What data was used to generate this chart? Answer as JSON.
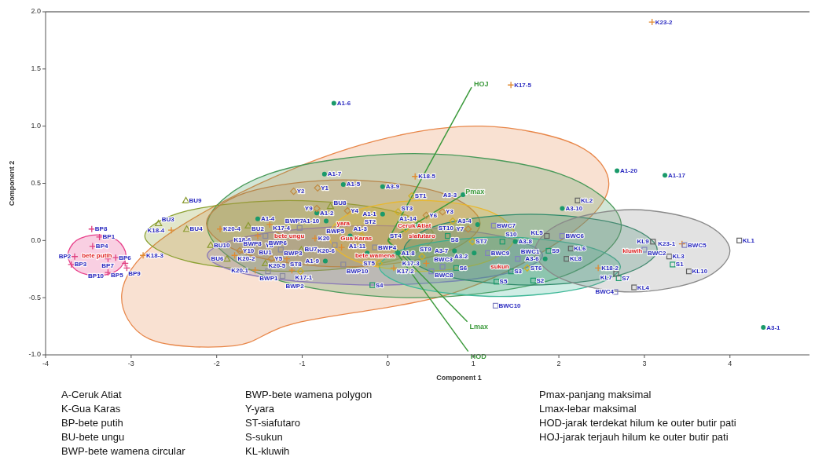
{
  "chart_data": {
    "type": "scatter",
    "xlabel": "Component 1",
    "ylabel": "Component 2",
    "xlim": [
      -4,
      4.93
    ],
    "ylim": [
      -1,
      2
    ],
    "xticks": [
      -4,
      -3,
      -2,
      -1,
      0,
      1,
      2,
      3,
      4
    ],
    "yticks": [
      {
        "value": -1,
        "label": "-1.0"
      },
      -0.5,
      {
        "value": 0,
        "label": "0.0"
      },
      0.5,
      {
        "value": 1,
        "label": "1.0"
      },
      1.5,
      {
        "value": 2,
        "label": "2.0"
      }
    ],
    "series": [
      {
        "type": "area",
        "name": "Gua Karas",
        "color": "#e8874a",
        "x": [
          2.58,
          2.22,
          1.1,
          -0.15,
          -1.52,
          -2.7,
          -3.11,
          -2.79,
          -1.79,
          -1.06,
          0.76,
          2.04
        ],
        "values": [
          0.46,
          0.83,
          1.0,
          0.87,
          0.49,
          -0.02,
          -0.47,
          -0.86,
          -0.92,
          -0.72,
          -0.46,
          0.01
        ]
      },
      {
        "type": "area",
        "name": "Ceruk Atiat",
        "color": "#4a9a5a",
        "x": [
          2.73,
          2.02,
          0.31,
          -1.4,
          -2.11,
          -1.4,
          0.31,
          2.02
        ],
        "values": [
          0.13,
          0.58,
          0.76,
          0.58,
          0.13,
          -0.32,
          -0.5,
          -0.32
        ]
      },
      {
        "type": "area",
        "name": "bete ungu",
        "color": "#8aa030",
        "x": [
          0.54,
          0.04,
          -1.15,
          -2.34,
          -2.84,
          -2.34,
          -1.15,
          0.04
        ],
        "values": [
          0.04,
          0.26,
          0.35,
          0.26,
          0.04,
          -0.18,
          -0.27,
          -0.18
        ]
      },
      {
        "type": "area",
        "name": "bete wamena",
        "color": "#8a78b8",
        "x": [
          1.81,
          1.24,
          -0.15,
          -1.54,
          -2.11,
          -1.54,
          -0.15,
          1.24
        ],
        "values": [
          -0.13,
          0.05,
          0.13,
          0.05,
          -0.13,
          -0.31,
          -0.39,
          -0.31
        ]
      },
      {
        "type": "area",
        "name": "yara",
        "color": "#b8864a",
        "x": [
          1.08,
          0.61,
          -0.52,
          -1.65,
          -2.12,
          -1.65,
          -0.52,
          0.61
        ],
        "values": [
          0.15,
          0.42,
          0.53,
          0.42,
          0.15,
          -0.12,
          -0.23,
          -0.12
        ]
      },
      {
        "type": "area",
        "name": "siafutaro",
        "color": "#e8b830",
        "x": [
          1.49,
          1.17,
          0.4,
          -0.37,
          -0.69,
          -0.37,
          0.4,
          1.17
        ],
        "values": [
          0.04,
          0.26,
          0.35,
          0.26,
          0.04,
          -0.18,
          -0.27,
          -0.18
        ]
      },
      {
        "type": "area",
        "name": "sukun",
        "color": "#3fb898",
        "x": [
          2.72,
          2.31,
          1.31,
          0.31,
          -0.1,
          0.31,
          1.31,
          2.31
        ],
        "values": [
          -0.23,
          -0.05,
          0.03,
          -0.05,
          -0.23,
          -0.41,
          -0.49,
          -0.41
        ]
      },
      {
        "type": "area",
        "color": "#2e8a6a",
        "x": [
          3.15,
          2.72,
          1.67,
          0.62,
          0.19,
          0.62,
          1.67,
          2.72
        ],
        "values": [
          -0.08,
          0.14,
          0.23,
          0.14,
          -0.08,
          -0.3,
          -0.39,
          -0.3
        ]
      },
      {
        "type": "area",
        "name": "kluwih",
        "color": "#8a8a8a",
        "x": [
          4.0,
          3.67,
          2.86,
          2.05,
          1.72,
          2.05,
          2.86,
          3.67
        ],
        "values": [
          -0.09,
          0.16,
          0.27,
          0.16,
          -0.09,
          -0.34,
          -0.45,
          -0.34
        ]
      },
      {
        "type": "area",
        "name": "bete putih",
        "color": "#e8408a",
        "x": [
          -3.06,
          -3.16,
          -3.4,
          -3.64,
          -3.74,
          -3.64,
          -3.4,
          -3.16
        ],
        "values": [
          -0.13,
          0.0,
          0.05,
          0.0,
          -0.13,
          -0.26,
          -0.31,
          -0.26
        ]
      },
      {
        "type": "line",
        "name": "HOJ",
        "color": "#3c9a3c",
        "x": [
          0,
          0.98
        ],
        "values": [
          0,
          1.34
        ]
      },
      {
        "type": "line",
        "name": "Pmax",
        "color": "#3c9a3c",
        "x": [
          0,
          0.88
        ],
        "values": [
          0,
          0.4
        ]
      },
      {
        "type": "line",
        "name": "Lmax",
        "color": "#3c9a3c",
        "x": [
          0,
          0.93
        ],
        "values": [
          0,
          -0.71
        ]
      },
      {
        "type": "line",
        "name": "HOD",
        "color": "#3c9a3c",
        "x": [
          0,
          0.94
        ],
        "values": [
          0,
          -0.97
        ]
      },
      {
        "marker": "circle",
        "color": "#1a9a6a",
        "x": [
          -0.63,
          -0.74,
          -0.52,
          -0.06,
          0.88,
          2.68,
          3.24,
          2.04,
          -1.52,
          -0.83,
          -0.06,
          0.35,
          -0.72,
          -0.44,
          -0.73,
          0.12,
          -0.24,
          0.78,
          1.01,
          1.05,
          1.49,
          1.84,
          4.39
        ],
        "values": [
          1.2,
          0.58,
          0.49,
          0.47,
          0.4,
          0.61,
          0.57,
          0.28,
          0.19,
          0.24,
          0.23,
          0.13,
          0.17,
          0.04,
          -0.18,
          -0.11,
          -0.11,
          -0.09,
          -0.11,
          0.14,
          -0.01,
          -0.16,
          -0.76
        ],
        "value_labels": [
          "A1-6",
          "A1-7",
          "A1-5",
          "A3-9",
          "A3-3",
          "A1-20",
          "A1-17",
          "A3-10",
          "A1-4",
          "A1-2",
          "A1-1",
          "A1-14",
          "A1-10",
          "A1-3",
          "A1-9",
          "A1-8",
          "A1-11",
          "A3-7",
          "A3-2",
          "A3-4",
          "A3-8",
          "A3-6",
          "A3-1"
        ]
      },
      {
        "marker": "cross",
        "color": "#e08a30",
        "x": [
          3.09,
          1.44,
          0.32,
          -2.53,
          -2.86,
          -1.96,
          -1.38,
          -1.52,
          -1.18,
          -1.79,
          -1.55,
          -1.12,
          -0.85,
          -0.54,
          0.45,
          0.07,
          2.46,
          3.44
        ],
        "values": [
          1.91,
          1.36,
          0.56,
          0.09,
          -0.13,
          0.1,
          0.14,
          0.04,
          -0.16,
          -0.13,
          -0.26,
          -0.26,
          0.02,
          -0.06,
          -0.2,
          -0.24,
          -0.24,
          -0.03
        ],
        "value_labels": [
          "K23-2",
          "K17-5",
          "K18-5",
          "K18-4",
          "K18-3",
          "K20-4",
          "K17-4",
          "K18-6",
          "K20-5",
          "K20-2",
          "K20-1",
          "K17-1",
          "K20",
          "K20-6",
          "K17-3",
          "K17-2",
          "K18-2",
          "K23-1"
        ]
      },
      {
        "marker": "cross",
        "color": "#e04080",
        "x": [
          -3.46,
          -3.37,
          -3.45,
          -3.66,
          -3.7,
          -3.18,
          -3.27,
          -3.07,
          -3.05,
          -3.27
        ],
        "values": [
          0.1,
          0.03,
          -0.05,
          -0.14,
          -0.21,
          -0.15,
          -0.16,
          -0.2,
          -0.24,
          -0.28
        ],
        "value_labels": [
          "BP8",
          "BP1",
          "BP4",
          "BP2",
          "BP3",
          "BP6",
          "BP7",
          "BP9",
          "BP5",
          "BP10"
        ]
      },
      {
        "marker": "triangle",
        "color": "#8a9a30",
        "x": [
          -2.36,
          -2.68,
          -2.35,
          -1.63,
          -2.07,
          -1.88,
          -1.43,
          -1.01,
          -0.67
        ],
        "values": [
          0.35,
          0.15,
          0.1,
          0.13,
          -0.04,
          -0.16,
          -0.2,
          -0.08,
          0.3
        ],
        "value_labels": [
          "BU9",
          "BU3",
          "BU4",
          "BU2",
          "BU10",
          "BU6",
          "BU1",
          "BU7",
          "BU8"
        ]
      },
      {
        "marker": "diamond",
        "color": "#c08a40",
        "x": [
          -1.1,
          -0.82,
          -0.83,
          -0.47,
          0.45,
          0.64,
          0.94,
          -1.29,
          -1.73,
          -1.36
        ],
        "values": [
          0.43,
          0.46,
          0.28,
          0.26,
          0.22,
          0.25,
          0.1,
          0.05,
          -0.09,
          -0.16
        ],
        "value_labels": [
          "Y2",
          "Y1",
          "Y9",
          "Y4",
          "Y6",
          "Y3",
          "Y7",
          "Y8",
          "Y10",
          "Y5"
        ]
      },
      {
        "marker": "diamond",
        "color": "#d0b020",
        "x": [
          0.28,
          0.12,
          0.21,
          0.76,
          -0.31,
          0.99,
          0.4,
          -0.1,
          1.63,
          -1.02
        ],
        "values": [
          0.39,
          0.25,
          0.1,
          0.17,
          0.04,
          -0.01,
          -0.14,
          -0.2,
          -0.24,
          -0.27
        ],
        "value_labels": [
          "ST1",
          "ST3",
          "ST4",
          "ST10",
          "ST2",
          "ST7",
          "ST9",
          "ST5",
          "ST6",
          "ST8"
        ]
      },
      {
        "marker": "square",
        "color": "#1a9a6a",
        "x": [
          -0.18,
          1.27,
          1.7,
          2.7,
          3.33,
          1.44,
          0.7,
          0.8,
          1.88,
          1.34
        ],
        "values": [
          -0.39,
          -0.36,
          -0.35,
          -0.33,
          -0.21,
          -0.27,
          0.04,
          -0.24,
          -0.09,
          -0.01
        ],
        "value_labels": [
          "S4",
          "S5",
          "S2",
          "S7",
          "S1",
          "S3",
          "S8",
          "S6",
          "S9",
          "S10"
        ]
      },
      {
        "marker": "square",
        "color": "#606060",
        "x": [
          4.11,
          2.22,
          3.1,
          3.29,
          3.52,
          2.88,
          2.67,
          2.09,
          2.14,
          1.86
        ],
        "values": [
          0.0,
          0.35,
          -0.01,
          -0.14,
          -0.27,
          -0.41,
          -0.29,
          -0.16,
          -0.07,
          0.04
        ],
        "value_labels": [
          "KL1",
          "KL2",
          "KL9",
          "KL3",
          "KL10",
          "KL4",
          "KL7",
          "KL8",
          "KL6",
          "KL5"
        ]
      },
      {
        "marker": "square",
        "color": "#8080c0",
        "x": [
          1.24,
          2.04,
          1.17,
          1.52,
          0.64,
          0.51,
          3.0,
          3.47,
          2.66,
          1.26
        ],
        "values": [
          0.13,
          0.04,
          -0.11,
          -0.16,
          -0.23,
          -0.27,
          -0.08,
          -0.04,
          -0.45,
          -0.57
        ],
        "value_labels": [
          "BWC7",
          "BWC6",
          "BWC9",
          "BWC1",
          "BWC3",
          "BWC8",
          "BWC2",
          "BWC5",
          "BWC4",
          "BWC10"
        ]
      },
      {
        "marker": "square",
        "color": "#8888a0",
        "x": [
          -1.03,
          -0.62,
          -0.15,
          -1.43,
          -1.59,
          -1.25,
          -1.4,
          -1.23,
          -0.52
        ],
        "values": [
          0.11,
          -0.04,
          -0.06,
          0.04,
          -0.09,
          -0.08,
          -0.27,
          -0.31,
          -0.21
        ],
        "value_labels": [
          "BWP7",
          "BWP5",
          "BWP4",
          "BWP6",
          "BWP8",
          "BWP3",
          "BWP1",
          "BWP2",
          "BWP10"
        ]
      }
    ],
    "annotations": [
      "A-Ceruk Atiat",
      "K-Gua Karas",
      "BP-bete putih",
      "BU-bete ungu",
      "BWP-bete wamena circular",
      "BWP-bete wamena polygon",
      "Y-yara",
      "ST-siafutaro",
      "S-sukun",
      "KL-kluwih",
      "Pmax-panjang maksimal",
      "Lmax-lebar maksimal",
      "HOD-jarak terdekat hilum ke outer butir pati",
      "HOJ-jarak terjauh hilum ke outer butir pati"
    ]
  }
}
